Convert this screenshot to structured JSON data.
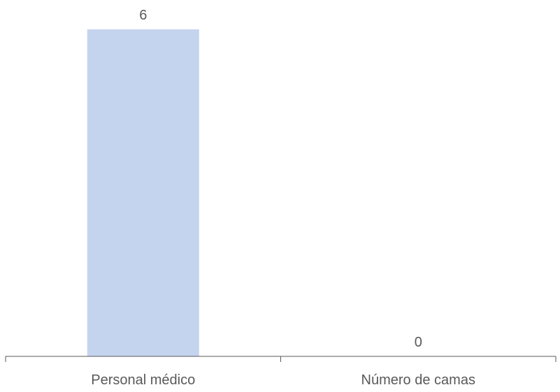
{
  "chart_data": {
    "type": "bar",
    "categories": [
      "Personal médico",
      "Número de camas"
    ],
    "values": [
      6,
      0
    ],
    "data_labels": [
      "6",
      "0"
    ],
    "title": "",
    "xlabel": "",
    "ylabel": "",
    "ylim": [
      0,
      6
    ],
    "grid": false,
    "legend": "none",
    "colors": {
      "bar": "#c5d4ee",
      "axis": "#595959",
      "text": "#595959"
    }
  }
}
